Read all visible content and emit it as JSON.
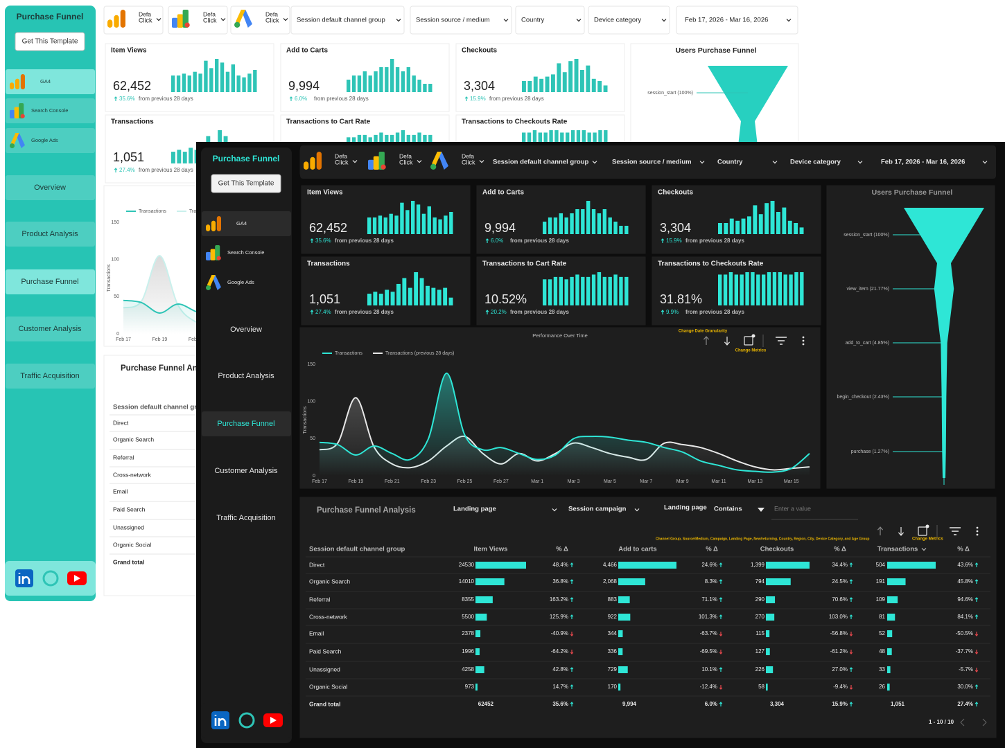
{
  "sidebar": {
    "title": "Purchase Funnel",
    "button": "Get This Template",
    "sources": [
      "GA4",
      "Search Console",
      "Google Ads"
    ],
    "nav": [
      "Overview",
      "Product Analysis",
      "Purchase Funnel",
      "Customer Analysis",
      "Traffic Acquisition"
    ]
  },
  "filters": {
    "chips": [
      [
        "Defa",
        "Click"
      ],
      [
        "Defa",
        "Click"
      ],
      [
        "Defa",
        "Click"
      ]
    ],
    "dropdowns": [
      "Session default channel group",
      "Session source / medium",
      "Country",
      "Device category"
    ],
    "date_range": "Feb 17, 2026 - Mar 16, 2026"
  },
  "kpi_period": "from previous 28 days",
  "kpis": [
    {
      "label": "Item Views",
      "value": "62,452",
      "change": "35.6%",
      "spark": [
        9,
        9,
        10,
        9,
        11,
        10,
        17,
        13,
        18,
        16,
        11,
        15,
        9,
        8,
        10,
        12
      ]
    },
    {
      "label": "Add to Carts",
      "value": "9,994",
      "change": "6.0%",
      "spark": [
        3,
        4,
        4,
        5,
        4,
        5,
        6,
        6,
        8,
        6,
        5,
        6,
        4,
        3,
        2,
        2
      ]
    },
    {
      "label": "Checkouts",
      "value": "3,304",
      "change": "15.9%",
      "spark": [
        5,
        5,
        7,
        6,
        7,
        8,
        13,
        9,
        14,
        15,
        10,
        12,
        6,
        5,
        3
      ]
    },
    {
      "label": "Transactions",
      "value": "1,051",
      "change": "27.4%",
      "spark": [
        6,
        7,
        6,
        8,
        7,
        11,
        14,
        9,
        17,
        14,
        10,
        9,
        8,
        9,
        4
      ]
    },
    {
      "label": "Transactions to Cart Rate",
      "value": "10.52%",
      "change": "20.2%",
      "spark": [
        11,
        11,
        12,
        12,
        11,
        12,
        13,
        12,
        12,
        13,
        14,
        12,
        12,
        13,
        12,
        12
      ]
    },
    {
      "label": "Transactions to Checkouts Rate",
      "value": "31.81%",
      "change": "9.9%",
      "spark": [
        13,
        13,
        14,
        13,
        13,
        14,
        14,
        13,
        13,
        14,
        14,
        14,
        13,
        13,
        14,
        14
      ]
    }
  ],
  "performance_chart": {
    "type": "line",
    "title": "Performance Over Time",
    "y_label": "Transactions",
    "annotation_granularity": "Change Date Granularity",
    "annotation_metrics": "Change Metrics",
    "categories": [
      "Feb 17",
      null,
      "Feb 19",
      null,
      "Feb 21",
      null,
      "Feb 23",
      null,
      "Feb 25",
      null,
      "Feb 27",
      null,
      "Mar 1",
      null,
      "Mar 3",
      null,
      "Mar 5",
      null,
      "Mar 7",
      null,
      "Mar 9",
      null,
      "Mar 11",
      null,
      "Mar 13",
      null,
      "Mar 15",
      null
    ],
    "ylim": [
      0,
      150
    ],
    "yticks": [
      0,
      50,
      100,
      150
    ],
    "grid": false,
    "series": [
      {
        "name": "Transactions",
        "color": "#2ee6d6",
        "values": [
          45,
          42,
          28,
          40,
          30,
          22,
          50,
          138,
          55,
          35,
          38,
          30,
          22,
          28,
          50,
          53,
          52,
          48,
          45,
          38,
          32,
          20,
          14,
          8,
          6,
          5,
          10,
          30
        ]
      },
      {
        "name": "Transactions (previous 28 days)",
        "color": "#e8e8e8",
        "values": [
          35,
          44,
          105,
          39,
          16,
          11,
          20,
          40,
          53,
          30,
          16,
          30,
          20,
          30,
          44,
          38,
          30,
          25,
          22,
          44,
          42,
          38,
          30,
          20,
          12,
          8,
          10,
          12
        ]
      }
    ]
  },
  "funnel": {
    "title": "Users Purchase Funnel",
    "stages": [
      {
        "label": "session_start (100%)",
        "value": 100
      },
      {
        "label": "view_item (21.77%)",
        "value": 21.77
      },
      {
        "label": "add_to_cart (4.85%)",
        "value": 4.85
      },
      {
        "label": "begin_checkout (2.43%)",
        "value": 2.43
      },
      {
        "label": "purchase (1.27%)",
        "value": 1.27
      }
    ]
  },
  "table": {
    "title": "Purchase Funnel Analysis",
    "controls": {
      "dimension_1": "Landing page",
      "dimension_2": "Session campaign",
      "filter_field": "Landing page",
      "filter_operator": "Contains",
      "filter_placeholder": "Enter a value"
    },
    "dimension_note": "Channel Group, Source/Medium, Campaign, Landing Page, New/returning, Country, Region, City, Device Category, and Age Group",
    "metrics_note": "Change Metrics",
    "columns": [
      "Session default channel group",
      "Item Views",
      "% Δ",
      "Add to carts",
      "% Δ",
      "Checkouts",
      "% Δ",
      "Transactions",
      "% Δ"
    ],
    "rows": [
      {
        "channel": "Direct",
        "item_views": 24530,
        "item_views_change": "48.4%",
        "add_to_carts": {
          "value": 4466,
          "label": "4,466"
        },
        "add_to_carts_change": "24.6%",
        "checkouts": {
          "value": 1399,
          "label": "1,399"
        },
        "checkouts_change": "34.4%",
        "transactions": 504,
        "transactions_change": "43.6%"
      },
      {
        "channel": "Organic Search",
        "item_views": 14010,
        "item_views_change": "36.8%",
        "add_to_carts": {
          "value": 2068,
          "label": "2,068"
        },
        "add_to_carts_change": "8.3%",
        "checkouts": 794,
        "checkouts_change": "24.5%",
        "transactions": 191,
        "transactions_change": "45.8%"
      },
      {
        "channel": "Referral",
        "item_views": 8355,
        "item_views_change": "163.2%",
        "add_to_carts": 883,
        "add_to_carts_change": "71.1%",
        "checkouts": 290,
        "checkouts_change": "70.6%",
        "transactions": 109,
        "transactions_change": "94.6%"
      },
      {
        "channel": "Cross-network",
        "item_views": 5500,
        "item_views_change": "125.9%",
        "add_to_carts": 922,
        "add_to_carts_change": "101.3%",
        "checkouts": 270,
        "checkouts_change": "103.0%",
        "transactions": 81,
        "transactions_change": "84.1%"
      },
      {
        "channel": "Email",
        "item_views": 2378,
        "item_views_change": "-40.9%",
        "add_to_carts": 344,
        "add_to_carts_change": "-63.7%",
        "checkouts": 115,
        "checkouts_change": "-56.8%",
        "transactions": 52,
        "transactions_change": "-50.5%"
      },
      {
        "channel": "Paid Search",
        "item_views": 1996,
        "item_views_change": "-64.2%",
        "add_to_carts": 336,
        "add_to_carts_change": "-69.5%",
        "checkouts": 127,
        "checkouts_change": "-61.2%",
        "transactions": 48,
        "transactions_change": "-37.7%"
      },
      {
        "channel": "Unassigned",
        "item_views": 4258,
        "item_views_change": "42.8%",
        "add_to_carts": 729,
        "add_to_carts_change": "10.1%",
        "checkouts": 226,
        "checkouts_change": "27.0%",
        "transactions": 33,
        "transactions_change": "-5.7%"
      },
      {
        "channel": "Organic Social",
        "item_views": 973,
        "item_views_change": "14.7%",
        "add_to_carts": 170,
        "add_to_carts_change": "-12.4%",
        "checkouts": 58,
        "checkouts_change": "-9.4%",
        "transactions": 26,
        "transactions_change": "30.0%"
      }
    ],
    "total": {
      "channel": "Grand total",
      "item_views": 62452,
      "item_views_change": "35.6%",
      "add_to_carts": {
        "value": 9994,
        "label": "9,994"
      },
      "add_to_carts_change": "6.0%",
      "checkouts": {
        "value": 3304,
        "label": "3,304"
      },
      "checkouts_change": "15.9%",
      "transactions": {
        "value": 1051,
        "label": "1,051"
      },
      "transactions_change": "27.4%"
    },
    "pagination": "1 - 10 / 10"
  }
}
